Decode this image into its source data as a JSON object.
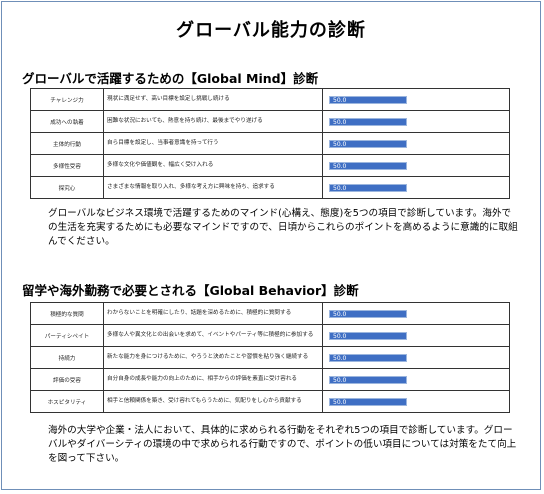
{
  "title": "グローバル能力の診断",
  "section1": {
    "heading": "グローバルで活躍するための【Global  Mind】診断",
    "rows": [
      {
        "name": "チャレンジ力",
        "desc": "現状に満足せず、高い目標を設定し挑戦し続ける",
        "value": "50.0"
      },
      {
        "name": "成功への執着",
        "desc": "困難な状況においても、熱意を持ち続け、最後までやり遂げる",
        "value": "50.0"
      },
      {
        "name": "主体的行動",
        "desc": "自ら目標を設定し、当事者意識を持って行う",
        "value": "50.0"
      },
      {
        "name": "多様性受容",
        "desc": "多様な文化や価値観を、幅広く受け入れる",
        "value": "50.0"
      },
      {
        "name": "探究心",
        "desc": "さまざまな情報を取り入れ、多様な考え方に興味を持ち、追求する",
        "value": "50.0"
      }
    ],
    "paragraph": "グローバルなビジネス環境で活躍するためのマインド(心構え、態度)を5つの項目で診断しています。海外での生活を充実するためにも必要なマインドですので、日頃からこれらのポイントを高めるように意識的に取組んでください。"
  },
  "section2": {
    "heading": "留学や海外勤務で必要とされる【Global  Behavior】診断",
    "rows": [
      {
        "name": "積極的な質問",
        "desc": "わからないことを明確にしたり、話題を深めるために、積極的に質問する",
        "value": "50.0"
      },
      {
        "name": "パーティシペイト",
        "desc": "多様な人や異文化との出会いを求めて、イベントやパーティ等に積極的に参加する",
        "value": "50.0"
      },
      {
        "name": "持続力",
        "desc": "新たな能力を身につけるために、やろうと決めたことや習慣を粘り強く継続する",
        "value": "50.0"
      },
      {
        "name": "評価の受容",
        "desc": "自分自身の成長や能力の向上のために、相手からの評価を素直に受け容れる",
        "value": "50.0"
      },
      {
        "name": "ホスピタリティ",
        "desc": "相手と信頼関係を築き、受け容れてもらうために、気配りをし心から貢献する",
        "value": "50.0"
      }
    ],
    "paragraph": "海外の大学や企業・法人において、具体的に求められる行動をそれぞれ5つの項目で診断しています。グローバルやダイバーシティの環境の中で求められる行動ですので、ポイントの低い項目については対策をたて向上を図って下さい。"
  },
  "colors": {
    "bar": "#3f6fc4",
    "border": "#6f8fb8"
  }
}
